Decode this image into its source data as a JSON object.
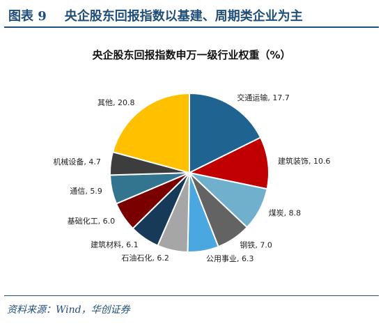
{
  "figure": {
    "label": "图表 9",
    "title": "央企股东回报指数以基建、周期类企业为主",
    "source": "资料来源：Wind，华创证券"
  },
  "colors": {
    "header_text": "#1f4e79",
    "rule": "#1f4e79"
  },
  "chart_data": {
    "type": "pie",
    "title": "央企股东回报指数申万一级行业权重（%）",
    "legend": "none",
    "slices": [
      {
        "label": "交通运输",
        "value": 17.7,
        "value_text": "17.7",
        "color": "#1f6391"
      },
      {
        "label": "建筑装饰",
        "value": 10.6,
        "value_text": "10.6",
        "color": "#c00000"
      },
      {
        "label": "煤炭",
        "value": 8.8,
        "value_text": "8.8",
        "color": "#70b0cc"
      },
      {
        "label": "钢铁",
        "value": 7.0,
        "value_text": "7.0",
        "color": "#636363"
      },
      {
        "label": "公用事业",
        "value": 6.3,
        "value_text": "6.3",
        "color": "#4aa7e0"
      },
      {
        "label": "石油石化",
        "value": 6.2,
        "value_text": "6.2",
        "color": "#a6a6a6"
      },
      {
        "label": "建筑材料",
        "value": 6.1,
        "value_text": "6.1",
        "color": "#163a57"
      },
      {
        "label": "基础化工",
        "value": 6.0,
        "value_text": "6.0",
        "color": "#7a0000"
      },
      {
        "label": "通信",
        "value": 5.9,
        "value_text": "5.9",
        "color": "#33758f"
      },
      {
        "label": "机械设备",
        "value": 4.7,
        "value_text": "4.7",
        "color": "#3d3d3d"
      },
      {
        "label": "其他",
        "value": 20.8,
        "value_text": "20.8",
        "color": "#ffc000"
      }
    ]
  }
}
